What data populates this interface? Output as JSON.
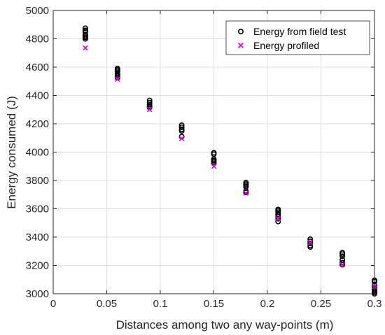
{
  "chart_data": {
    "type": "scatter",
    "title": "",
    "xlabel": "Distances among two any way-points (m)",
    "ylabel": "Energy consumed (J)",
    "xlim": [
      0,
      0.3
    ],
    "ylim": [
      3000,
      5000
    ],
    "xticks": [
      0,
      0.05,
      0.1,
      0.15,
      0.2,
      0.25,
      0.3
    ],
    "xtick_labels": [
      "0",
      "0.05",
      "0.1",
      "0.15",
      "0.2",
      "0.25",
      "0.3"
    ],
    "yticks": [
      3000,
      3200,
      3400,
      3600,
      3800,
      4000,
      4200,
      4400,
      4600,
      4800,
      5000
    ],
    "ytick_labels": [
      "3000",
      "3200",
      "3400",
      "3600",
      "3800",
      "4000",
      "4200",
      "4400",
      "4600",
      "4800",
      "5000"
    ],
    "grid": true,
    "legend_position": "top-right",
    "series": [
      {
        "name": "Energy from field test",
        "marker": "circle",
        "color": "#000000",
        "points": [
          [
            0.03,
            4875
          ],
          [
            0.03,
            4860
          ],
          [
            0.03,
            4850
          ],
          [
            0.03,
            4830
          ],
          [
            0.03,
            4820
          ],
          [
            0.03,
            4810
          ],
          [
            0.03,
            4800
          ],
          [
            0.06,
            4590
          ],
          [
            0.06,
            4580
          ],
          [
            0.06,
            4570
          ],
          [
            0.06,
            4555
          ],
          [
            0.06,
            4545
          ],
          [
            0.06,
            4535
          ],
          [
            0.06,
            4525
          ],
          [
            0.09,
            4365
          ],
          [
            0.09,
            4350
          ],
          [
            0.09,
            4335
          ],
          [
            0.09,
            4325
          ],
          [
            0.09,
            4315
          ],
          [
            0.12,
            4190
          ],
          [
            0.12,
            4175
          ],
          [
            0.12,
            4160
          ],
          [
            0.12,
            4150
          ],
          [
            0.12,
            4110
          ],
          [
            0.15,
            3995
          ],
          [
            0.15,
            3985
          ],
          [
            0.15,
            3950
          ],
          [
            0.15,
            3940
          ],
          [
            0.15,
            3930
          ],
          [
            0.15,
            3920
          ],
          [
            0.18,
            3785
          ],
          [
            0.18,
            3775
          ],
          [
            0.18,
            3765
          ],
          [
            0.18,
            3755
          ],
          [
            0.18,
            3725
          ],
          [
            0.18,
            3715
          ],
          [
            0.21,
            3595
          ],
          [
            0.21,
            3585
          ],
          [
            0.21,
            3575
          ],
          [
            0.21,
            3560
          ],
          [
            0.21,
            3545
          ],
          [
            0.21,
            3530
          ],
          [
            0.21,
            3510
          ],
          [
            0.24,
            3385
          ],
          [
            0.24,
            3370
          ],
          [
            0.24,
            3355
          ],
          [
            0.24,
            3340
          ],
          [
            0.24,
            3330
          ],
          [
            0.27,
            3290
          ],
          [
            0.27,
            3280
          ],
          [
            0.27,
            3265
          ],
          [
            0.27,
            3240
          ],
          [
            0.27,
            3220
          ],
          [
            0.27,
            3205
          ],
          [
            0.3,
            3095
          ],
          [
            0.3,
            3085
          ],
          [
            0.3,
            3060
          ],
          [
            0.3,
            3040
          ],
          [
            0.3,
            3030
          ],
          [
            0.3,
            3020
          ],
          [
            0.3,
            3010
          ],
          [
            0.3,
            3000
          ]
        ]
      },
      {
        "name": "Energy profiled",
        "marker": "x",
        "color": "#e000e0",
        "points": [
          [
            0.03,
            4735
          ],
          [
            0.06,
            4515
          ],
          [
            0.09,
            4300
          ],
          [
            0.12,
            4095
          ],
          [
            0.15,
            3900
          ],
          [
            0.18,
            3710
          ],
          [
            0.21,
            3530
          ],
          [
            0.24,
            3360
          ],
          [
            0.27,
            3205
          ],
          [
            0.3,
            3050
          ]
        ]
      }
    ]
  }
}
